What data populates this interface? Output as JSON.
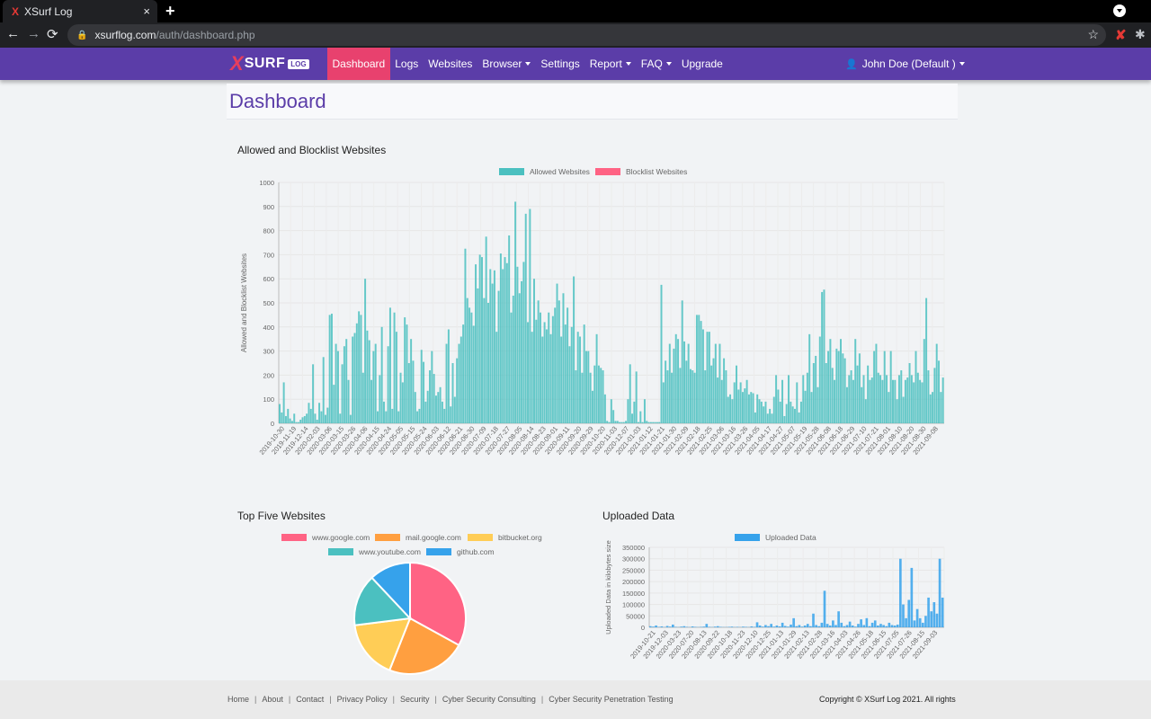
{
  "browser": {
    "tab_title": "XSurf Log",
    "tab_favicon": "X",
    "tab_close": "×",
    "new_tab": "+",
    "back": "←",
    "forward": "→",
    "reload": "⟳",
    "url_host": "xsurflog.com",
    "url_path": "/auth/dashboard.php",
    "bookmark_star": "☆",
    "extension_mark": "✘",
    "puzzle": "✱"
  },
  "nav": {
    "logo_x": "X",
    "logo_text": "SURF",
    "logo_badge": "LOG",
    "items": [
      {
        "label": "Dashboard",
        "active": true,
        "dropdown": false
      },
      {
        "label": "Logs",
        "active": false,
        "dropdown": false
      },
      {
        "label": "Websites",
        "active": false,
        "dropdown": false
      },
      {
        "label": "Browser",
        "active": false,
        "dropdown": true
      },
      {
        "label": "Settings",
        "active": false,
        "dropdown": false
      },
      {
        "label": "Report",
        "active": false,
        "dropdown": true
      },
      {
        "label": "FAQ",
        "active": false,
        "dropdown": true
      },
      {
        "label": "Upgrade",
        "active": false,
        "dropdown": false
      }
    ],
    "user_icon": "person-icon",
    "user_label": "John Doe (Default )"
  },
  "page": {
    "title": "Dashboard"
  },
  "colors": {
    "nav_bg": "#5b3da8",
    "active": "#e8416e",
    "allowed": "#4bc0c0",
    "blocklist": "#ff6384",
    "uploaded": "#36a2eb"
  },
  "chart_data": [
    {
      "type": "bar",
      "title": "Allowed and Blocklist Websites",
      "xlabel": "",
      "ylabel": "Allowed and Blocklist Websites",
      "ylim": [
        0,
        1000
      ],
      "yticks": [
        0,
        100,
        200,
        300,
        400,
        500,
        600,
        700,
        800,
        900,
        1000
      ],
      "grid": true,
      "legend_position": "top",
      "series": [
        {
          "name": "Allowed Websites",
          "color": "#4bc0c0"
        },
        {
          "name": "Blocklist Websites",
          "color": "#ff6384"
        }
      ],
      "x_tick_labels": [
        "2019-10-30",
        "2019-11-19",
        "2019-12-14",
        "2020-02-03",
        "2020-03-06",
        "2020-03-15",
        "2020-03-26",
        "2020-04-06",
        "2020-04-15",
        "2020-04-24",
        "2020-05-05",
        "2020-05-15",
        "2020-05-24",
        "2020-06-03",
        "2020-06-12",
        "2020-06-21",
        "2020-06-30",
        "2020-07-09",
        "2020-07-18",
        "2020-07-27",
        "2020-08-05",
        "2020-08-14",
        "2020-08-23",
        "2020-09-01",
        "2020-09-11",
        "2020-09-20",
        "2020-09-29",
        "2020-10-20",
        "2020-11-03",
        "2020-12-07",
        "2021-01-03",
        "2021-01-12",
        "2021-01-21",
        "2021-01-30",
        "2021-02-09",
        "2021-02-18",
        "2021-02-25",
        "2021-03-06",
        "2021-03-16",
        "2021-03-26",
        "2021-04-05",
        "2021-04-17",
        "2021-04-27",
        "2021-05-07",
        "2021-05-19",
        "2021-05-28",
        "2021-06-08",
        "2021-06-18",
        "2021-06-29",
        "2021-07-10",
        "2021-07-21",
        "2021-08-01",
        "2021-08-10",
        "2021-08-20",
        "2021-08-30",
        "2021-09-08"
      ],
      "allowed_values": [
        80,
        45,
        170,
        30,
        60,
        20,
        10,
        40,
        5,
        5,
        15,
        25,
        30,
        40,
        85,
        60,
        245,
        40,
        15,
        85,
        50,
        275,
        35,
        65,
        450,
        455,
        160,
        330,
        300,
        40,
        245,
        320,
        350,
        180,
        35,
        360,
        375,
        415,
        465,
        450,
        210,
        600,
        385,
        345,
        180,
        300,
        330,
        50,
        200,
        400,
        90,
        50,
        320,
        480,
        60,
        460,
        380,
        50,
        210,
        170,
        440,
        410,
        250,
        350,
        260,
        130,
        50,
        60,
        305,
        255,
        90,
        135,
        220,
        300,
        205,
        115,
        130,
        150,
        90,
        60,
        330,
        390,
        70,
        250,
        110,
        270,
        330,
        360,
        410,
        725,
        520,
        480,
        460,
        405,
        660,
        560,
        700,
        690,
        520,
        775,
        500,
        640,
        580,
        635,
        380,
        550,
        705,
        640,
        690,
        665,
        780,
        460,
        530,
        920,
        650,
        540,
        590,
        670,
        870,
        420,
        890,
        380,
        600,
        430,
        510,
        460,
        360,
        420,
        390,
        460,
        370,
        445,
        480,
        580,
        510,
        360,
        540,
        410,
        480,
        320,
        400,
        610,
        220,
        380,
        360,
        210,
        410,
        300,
        300,
        210,
        135,
        240,
        370,
        240,
        230,
        220,
        120,
        10,
        5,
        100,
        55,
        10,
        10,
        5,
        5,
        5,
        10,
        100,
        245,
        40,
        90,
        215,
        5,
        50,
        5,
        100,
        10,
        5,
        5,
        5,
        5,
        5,
        5,
        575,
        170,
        260,
        220,
        330,
        210,
        310,
        370,
        350,
        230,
        510,
        340,
        260,
        330,
        225,
        220,
        210,
        450,
        450,
        425,
        390,
        220,
        380,
        380,
        240,
        270,
        330,
        190,
        330,
        180,
        270,
        220,
        110,
        120,
        100,
        170,
        240,
        140,
        170,
        130,
        145,
        180,
        120,
        130,
        125,
        45,
        120,
        100,
        90,
        70,
        90,
        40,
        60,
        40,
        110,
        200,
        140,
        90,
        180,
        30,
        80,
        200,
        90,
        70,
        60,
        170,
        45,
        90,
        200,
        135,
        210,
        370,
        130,
        250,
        280,
        150,
        360,
        545,
        555,
        250,
        300,
        350,
        230,
        180,
        310,
        300,
        350,
        290,
        270,
        150,
        200,
        220,
        180,
        350,
        240,
        290,
        150,
        200,
        100,
        240,
        180,
        190,
        300,
        330,
        210,
        200,
        180,
        300,
        200,
        130,
        300,
        180,
        180,
        100,
        200,
        220,
        110,
        180,
        190,
        250,
        200,
        170,
        300,
        210,
        180,
        170,
        350,
        520,
        220,
        120,
        130,
        230,
        330,
        260,
        130,
        190
      ]
    },
    {
      "type": "pie",
      "title": "Top Five Websites",
      "legend_position": "top",
      "categories": [
        "www.google.com",
        "mail.google.com",
        "bitbucket.org",
        "www.youtube.com",
        "github.com"
      ],
      "values": [
        33,
        23,
        17,
        15,
        12
      ],
      "colors": [
        "#ff6384",
        "#ff9f40",
        "#ffcd56",
        "#4bc0c0",
        "#36a2eb"
      ]
    },
    {
      "type": "bar",
      "title": "Uploaded Data",
      "ylabel": "Uploaded Data in kilobytes size",
      "ylim": [
        0,
        350000
      ],
      "yticks": [
        0,
        50000,
        100000,
        150000,
        200000,
        250000,
        300000,
        350000
      ],
      "grid": true,
      "legend_position": "top",
      "series": [
        {
          "name": "Uploaded Data",
          "color": "#36a2eb"
        }
      ],
      "x_tick_labels": [
        "2019-10-21",
        "2019-12-03",
        "2020-03-23",
        "2020-07-20",
        "2020-08-13",
        "2020-09-22",
        "2020-10-18",
        "2020-11-23",
        "2020-12-10",
        "2020-12-25",
        "2021-01-13",
        "2021-01-29",
        "2021-02-13",
        "2021-02-28",
        "2021-03-16",
        "2021-04-03",
        "2021-04-26",
        "2021-05-18",
        "2021-06-15",
        "2021-07-05",
        "2021-07-26",
        "2021-08-15",
        "2021-09-03"
      ],
      "values": [
        5000,
        3000,
        8000,
        2000,
        4000,
        1000,
        6000,
        3000,
        12000,
        2000,
        1000,
        3000,
        5000,
        2000,
        1000,
        4000,
        2000,
        1000,
        2000,
        3000,
        15000,
        2000,
        1000,
        3000,
        5000,
        2000,
        1000,
        1000,
        2000,
        3000,
        1000,
        2000,
        1000,
        3000,
        2000,
        1000,
        4000,
        2000,
        22000,
        8000,
        3000,
        10000,
        5000,
        15000,
        3000,
        8000,
        4000,
        20000,
        6000,
        3000,
        12000,
        40000,
        5000,
        10000,
        3000,
        8000,
        15000,
        5000,
        60000,
        10000,
        5000,
        20000,
        160000,
        15000,
        8000,
        30000,
        10000,
        70000,
        20000,
        5000,
        10000,
        25000,
        8000,
        3000,
        15000,
        35000,
        10000,
        40000,
        5000,
        20000,
        30000,
        8000,
        15000,
        10000,
        5000,
        20000,
        10000,
        8000,
        12000,
        300000,
        100000,
        40000,
        120000,
        260000,
        30000,
        80000,
        40000,
        20000,
        50000,
        130000,
        70000,
        110000,
        60000,
        300000,
        130000
      ]
    }
  ],
  "footer": {
    "links": [
      "Home",
      "About",
      "Contact",
      "Privacy Policy",
      "Security",
      "Cyber Security Consulting",
      "Cyber Security Penetration Testing"
    ],
    "copyright": "Copyright © XSurf Log 2021. All rights"
  }
}
